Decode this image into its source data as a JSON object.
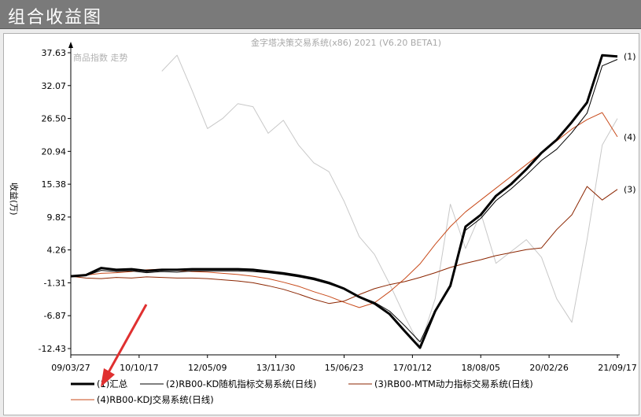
{
  "window": {
    "title": "组合收益图"
  },
  "chart_data": {
    "type": "line",
    "title": "金字塔决策交易系统(x86) 2021 (V6.20 BETA1)",
    "watermark": "商品指数 走势",
    "ylabel": "收益(万)",
    "y_ticks": [
      -12.43,
      -6.87,
      -1.31,
      4.26,
      9.82,
      15.38,
      20.94,
      26.5,
      32.07,
      37.63
    ],
    "y_tick_labels": [
      "-12.43",
      "-6.87",
      "-1.31",
      "4.26",
      "9.82",
      "15.38",
      "20.94",
      "26.50",
      "32.07",
      "37.63"
    ],
    "ylim": [
      -12.43,
      37.63
    ],
    "x_tick_labels": [
      "09/03/27",
      "10/10/17",
      "12/05/09",
      "13/11/30",
      "15/06/23",
      "17/01/12",
      "18/08/05",
      "20/02/26",
      "21/09/17"
    ],
    "grid": false,
    "legend_position": "bottom",
    "series": [
      {
        "name": "(1)汇总",
        "end_label": "(1)",
        "color": "#000000",
        "width": 3,
        "values": [
          -0.2,
          0.0,
          1.2,
          0.9,
          1.0,
          0.7,
          0.9,
          0.9,
          1.0,
          1.0,
          1.0,
          1.0,
          0.9,
          0.6,
          0.3,
          -0.1,
          -0.6,
          -1.3,
          -2.3,
          -3.7,
          -4.8,
          -6.6,
          -9.5,
          -12.3,
          -6.1,
          -1.8,
          8.2,
          10.2,
          13.4,
          15.4,
          17.9,
          20.7,
          22.9,
          25.9,
          29.2,
          37.2,
          37.0
        ]
      },
      {
        "name": "(2)RB00-KD随机指标交易系统(日线)",
        "end_label": "",
        "color": "#000000",
        "width": 1,
        "values": [
          -0.2,
          -0.1,
          0.8,
          0.6,
          0.7,
          0.4,
          0.6,
          0.5,
          0.7,
          0.7,
          0.7,
          0.7,
          0.6,
          0.4,
          0.1,
          -0.3,
          -0.8,
          -1.5,
          -2.4,
          -3.6,
          -4.6,
          -6.1,
          -8.6,
          -11.3,
          -5.9,
          -1.9,
          7.6,
          9.6,
          12.6,
          14.6,
          16.9,
          19.4,
          21.3,
          24.1,
          27.4,
          35.4,
          36.5
        ]
      },
      {
        "name": "(3)RB00-MTM动力指标交易系统(日线)",
        "end_label": "(3)",
        "color": "#8b2500",
        "width": 1,
        "values": [
          -0.2,
          -0.5,
          -0.6,
          -0.4,
          -0.5,
          -0.3,
          -0.4,
          -0.5,
          -0.5,
          -0.6,
          -0.8,
          -1.0,
          -1.3,
          -1.8,
          -2.4,
          -3.2,
          -4.1,
          -4.8,
          -4.4,
          -3.3,
          -2.3,
          -1.6,
          -1.1,
          -0.4,
          0.4,
          1.3,
          2.0,
          2.6,
          3.3,
          3.8,
          4.3,
          4.6,
          7.7,
          10.2,
          15.0,
          12.7,
          14.5
        ]
      },
      {
        "name": "(4)RB00-KDJ交易系统(日线)",
        "end_label": "(4)",
        "color": "#c84a1a",
        "width": 1,
        "values": [
          -0.2,
          0.0,
          0.3,
          0.4,
          0.6,
          0.9,
          1.0,
          0.8,
          0.6,
          0.5,
          0.3,
          0.1,
          -0.2,
          -0.6,
          -1.2,
          -1.9,
          -2.8,
          -3.6,
          -4.6,
          -5.5,
          -4.7,
          -2.8,
          -0.6,
          1.9,
          5.2,
          8.2,
          10.7,
          12.7,
          14.7,
          16.7,
          18.7,
          20.7,
          22.7,
          24.7,
          26.3,
          27.5,
          23.4
        ]
      },
      {
        "name": "商品指数 走势",
        "end_label": "",
        "color": "#c8c8c8",
        "width": 1,
        "values": [
          null,
          null,
          null,
          null,
          null,
          null,
          34.5,
          37.2,
          31.2,
          24.8,
          26.5,
          29.0,
          28.5,
          24.0,
          26.2,
          22.0,
          19.0,
          17.5,
          12.5,
          6.5,
          3.5,
          -1.5,
          -7.0,
          -12.0,
          -4.0,
          12.0,
          4.5,
          10.5,
          2.0,
          4.0,
          6.0,
          3.0,
          -4.0,
          -8.0,
          6.0,
          22.0,
          26.5
        ]
      }
    ]
  }
}
